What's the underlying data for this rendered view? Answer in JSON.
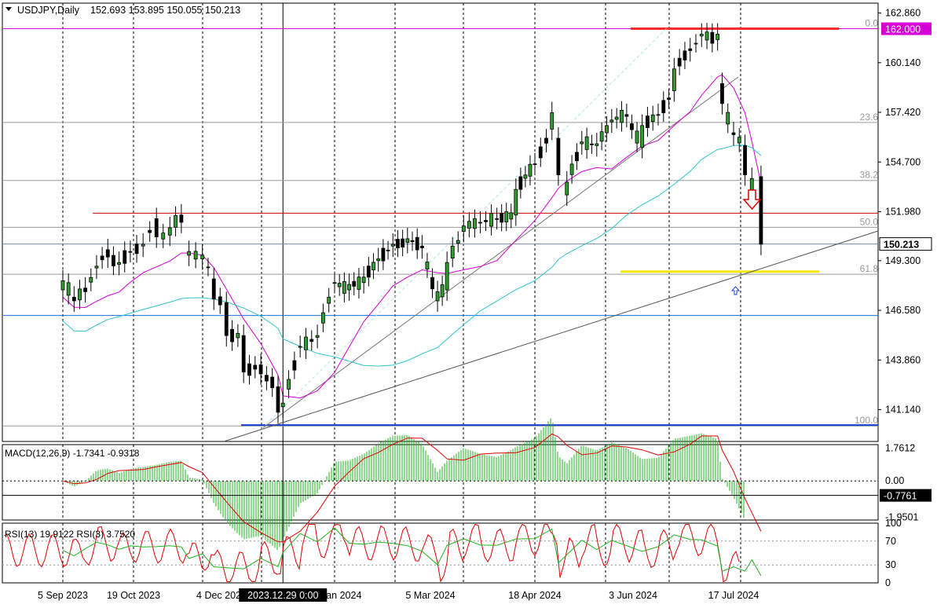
{
  "chart_data": {
    "type": "candlestick",
    "symbol": "USDJPY",
    "timeframe": "Daily",
    "ohlc": [
      "152.693",
      "153.895",
      "150.055",
      "150.213"
    ],
    "title": "USDJPY,Daily",
    "x_ticks": [
      {
        "label": "5 Sep 2023",
        "date": "2023-09-05"
      },
      {
        "label": "19 Oct 2023",
        "date": "2023-10-19"
      },
      {
        "label": "4 Dec 2023",
        "date": "2023-12-04"
      },
      {
        "label": "19 Jan 2024",
        "date": "2024-01-19"
      },
      {
        "label": "5 Mar 2024",
        "date": "2024-03-05"
      },
      {
        "label": "18 Apr 2024",
        "date": "2024-04-18"
      },
      {
        "label": "3 Jun 2024",
        "date": "2024-06-03"
      },
      {
        "label": "17 Jul 2024",
        "date": "2024-07-17"
      }
    ],
    "crosshair_label": "2023.12.29 0:00",
    "crosshair_date": "2023-12-29",
    "price_ticks": [
      "162.860",
      "160.140",
      "157.420",
      "154.700",
      "151.980",
      "149.300",
      "146.580",
      "143.860",
      "141.140"
    ],
    "ylim": [
      139.4,
      163.4
    ],
    "current_price": "150.213",
    "level_162_label": "162.000",
    "fib": {
      "high": 162.0,
      "low": 140.25,
      "labels": [
        "0.0",
        "23.6",
        "38.2",
        "50.0",
        "61.8",
        "100.0"
      ],
      "ratios": [
        0.0,
        0.236,
        0.382,
        0.5,
        0.618,
        1.0
      ]
    },
    "levels": [
      {
        "name": "resistance-red-162",
        "price": 162.0,
        "color": "#ff2a2a"
      },
      {
        "name": "support-red-1519",
        "price": 151.9,
        "color": "#cc0000"
      },
      {
        "name": "support-blue-1463",
        "price": 146.3,
        "color": "#1e6fd9"
      },
      {
        "name": "low-blue-1403",
        "price": 140.3,
        "color": "#1a3fd6"
      },
      {
        "name": "target-yellow",
        "price": 148.7,
        "color": "#f2e800"
      }
    ],
    "series": [
      {
        "name": "price",
        "color_up": "#000000",
        "color_down": "#000000",
        "points": [
          [
            "2023-09-05",
            147.7,
            148.2
          ],
          [
            "2023-09-12",
            147.3,
            147.1
          ],
          [
            "2023-09-19",
            147.8,
            147.6
          ],
          [
            "2023-09-26",
            148.9,
            149.0
          ],
          [
            "2023-10-03",
            149.9,
            149.5
          ],
          [
            "2023-10-10",
            149.1,
            149.2
          ],
          [
            "2023-10-17",
            149.8,
            149.8
          ],
          [
            "2023-10-24",
            150.1,
            150.2
          ],
          [
            "2023-10-31",
            151.6,
            150.6
          ],
          [
            "2023-11-07",
            150.7,
            151.1
          ],
          [
            "2023-11-13",
            151.8,
            151.4
          ],
          [
            "2023-11-17",
            149.6,
            149.8
          ],
          [
            "2023-11-24",
            149.4,
            149.6
          ],
          [
            "2023-11-30",
            148.3,
            147.2
          ],
          [
            "2023-12-06",
            147.0,
            145.2
          ],
          [
            "2023-12-13",
            145.2,
            143.2
          ],
          [
            "2023-12-20",
            143.6,
            143.1
          ],
          [
            "2023-12-27",
            142.4,
            141.0
          ],
          [
            "2023-12-29",
            141.3,
            141.5
          ],
          [
            "2024-01-05",
            144.6,
            144.6
          ],
          [
            "2024-01-12",
            145.1,
            145.2
          ],
          [
            "2024-01-19",
            148.1,
            148.1
          ],
          [
            "2024-01-26",
            147.7,
            148.0
          ],
          [
            "2024-02-02",
            148.1,
            148.4
          ],
          [
            "2024-02-09",
            149.3,
            149.4
          ],
          [
            "2024-02-16",
            150.1,
            150.2
          ],
          [
            "2024-02-23",
            150.3,
            150.5
          ],
          [
            "2024-03-01",
            150.1,
            150.0
          ],
          [
            "2024-03-08",
            147.1,
            147.6
          ],
          [
            "2024-03-12",
            147.7,
            149.2
          ],
          [
            "2024-03-19",
            150.9,
            151.2
          ],
          [
            "2024-03-26",
            151.4,
            151.4
          ],
          [
            "2024-04-02",
            151.6,
            151.6
          ],
          [
            "2024-04-10",
            151.8,
            153.2
          ],
          [
            "2024-04-18",
            154.6,
            154.6
          ],
          [
            "2024-04-26",
            156.5,
            157.4
          ],
          [
            "2024-04-29",
            156.0,
            154.0
          ],
          [
            "2024-05-03",
            152.9,
            153.6
          ],
          [
            "2024-05-10",
            155.7,
            155.8
          ],
          [
            "2024-05-17",
            155.6,
            155.7
          ],
          [
            "2024-05-24",
            156.9,
            157.0
          ],
          [
            "2024-05-31",
            157.3,
            157.2
          ],
          [
            "2024-06-07",
            155.5,
            156.7
          ],
          [
            "2024-06-14",
            157.3,
            157.3
          ],
          [
            "2024-06-21",
            158.6,
            159.8
          ],
          [
            "2024-06-28",
            160.9,
            160.8
          ],
          [
            "2024-07-03",
            161.6,
            161.7
          ],
          [
            "2024-07-10",
            161.4,
            161.7
          ],
          [
            "2024-07-12",
            159.0,
            157.9
          ],
          [
            "2024-07-17",
            156.3,
            156.2
          ],
          [
            "2024-07-22",
            155.6,
            154.0
          ],
          [
            "2024-07-25",
            152.9,
            153.8
          ],
          [
            "2024-07-29",
            153.9,
            150.2
          ]
        ]
      },
      {
        "name": "ma-magenta",
        "color": "#d400d4"
      },
      {
        "name": "ma-cyan",
        "color": "#2ec4cf"
      }
    ],
    "macd": {
      "label": "MACD(12,26,9) -1.7341 -0.9318",
      "ticks": [
        "1.7612",
        "0.00",
        "-1.9501"
      ],
      "current_label": "-0.7761",
      "ylim": [
        -2.1,
        1.95
      ],
      "histogram_color": "#22b122",
      "signal_color": "#e00000"
    },
    "rsi": {
      "label": "RSI(13) 19.9122  RSI(3) 3.7520",
      "ticks": [
        "100",
        "70",
        "30",
        "0"
      ],
      "ylim": [
        0,
        100
      ],
      "fast_color": "#e00000",
      "slow_color": "#22b122"
    },
    "annotations": {
      "down_arrow_color": "#e00000",
      "up_arrow_color": "#1a3fd6"
    }
  }
}
